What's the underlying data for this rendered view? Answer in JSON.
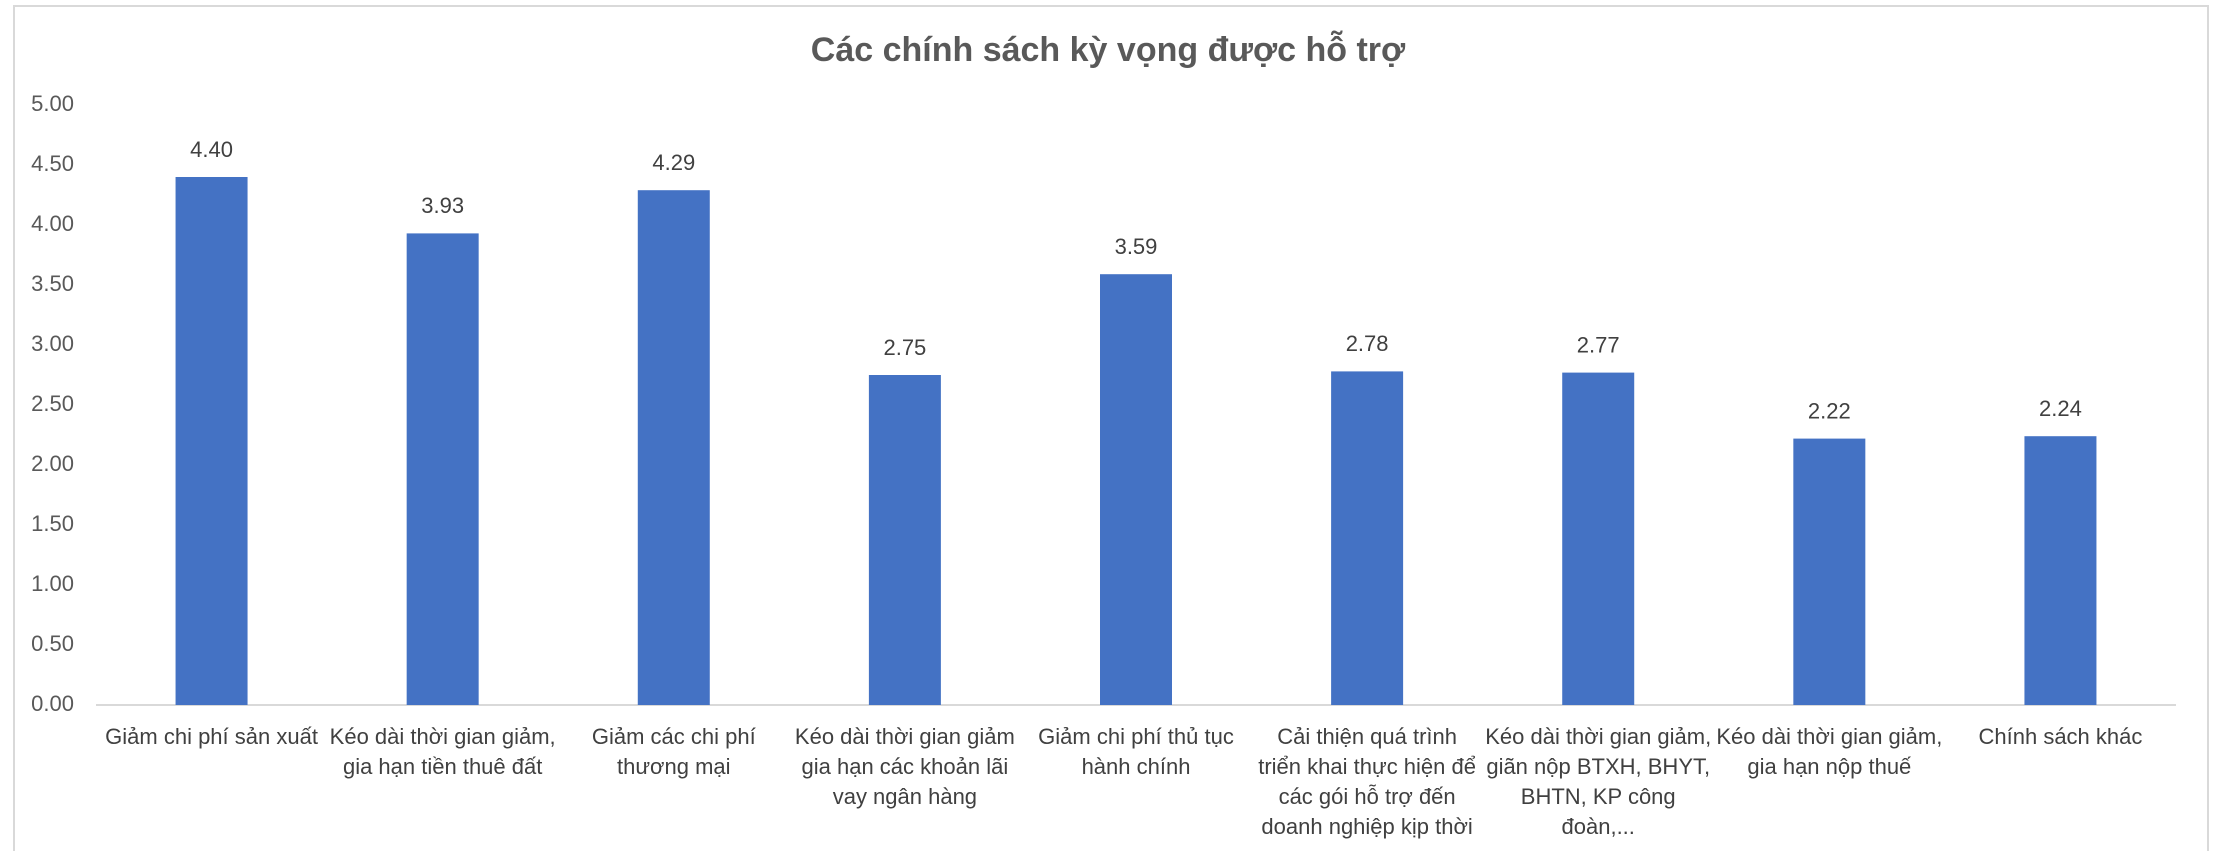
{
  "chart_data": {
    "type": "bar",
    "title": "Các chính sách kỳ vọng được hỗ trợ",
    "categories": [
      "Giảm chi phí sản xuất",
      "Kéo dài thời gian giảm, gia hạn tiền thuê đất",
      "Giảm các chi phí thương mại",
      "Kéo dài thời gian giảm gia hạn các khoản lãi vay ngân hàng",
      "Giảm chi phí thủ tục hành chính",
      "Cải thiện quá trình triển khai thực hiện để các gói hỗ trợ đến doanh nghiệp kịp thời",
      "Kéo dài thời gian giảm, giãn nộp BTXH, BHYT, BHTN, KP công đoàn,...",
      "Kéo dài thời gian giảm, gia hạn nộp thuế",
      "Chính sách khác"
    ],
    "values": [
      4.4,
      3.93,
      4.29,
      2.75,
      3.59,
      2.78,
      2.77,
      2.22,
      2.24
    ],
    "value_labels": [
      "4.40",
      "3.93",
      "4.29",
      "2.75",
      "3.59",
      "2.78",
      "2.77",
      "2.22",
      "2.24"
    ],
    "color": "#4472c4",
    "ylim": [
      0,
      5
    ],
    "yticks": [
      {
        "value": 0,
        "label": "0.00"
      },
      {
        "value": 0.5,
        "label": "0.50"
      },
      {
        "value": 1,
        "label": "1.00"
      },
      {
        "value": 1.5,
        "label": "1.50"
      },
      {
        "value": 2,
        "label": "2.00"
      },
      {
        "value": 2.5,
        "label": "2.50"
      },
      {
        "value": 3,
        "label": "3.00"
      },
      {
        "value": 3.5,
        "label": "3.50"
      },
      {
        "value": 4,
        "label": "4.00"
      },
      {
        "value": 4.5,
        "label": "4.50"
      },
      {
        "value": 5,
        "label": "5.00"
      }
    ],
    "grid": false
  }
}
